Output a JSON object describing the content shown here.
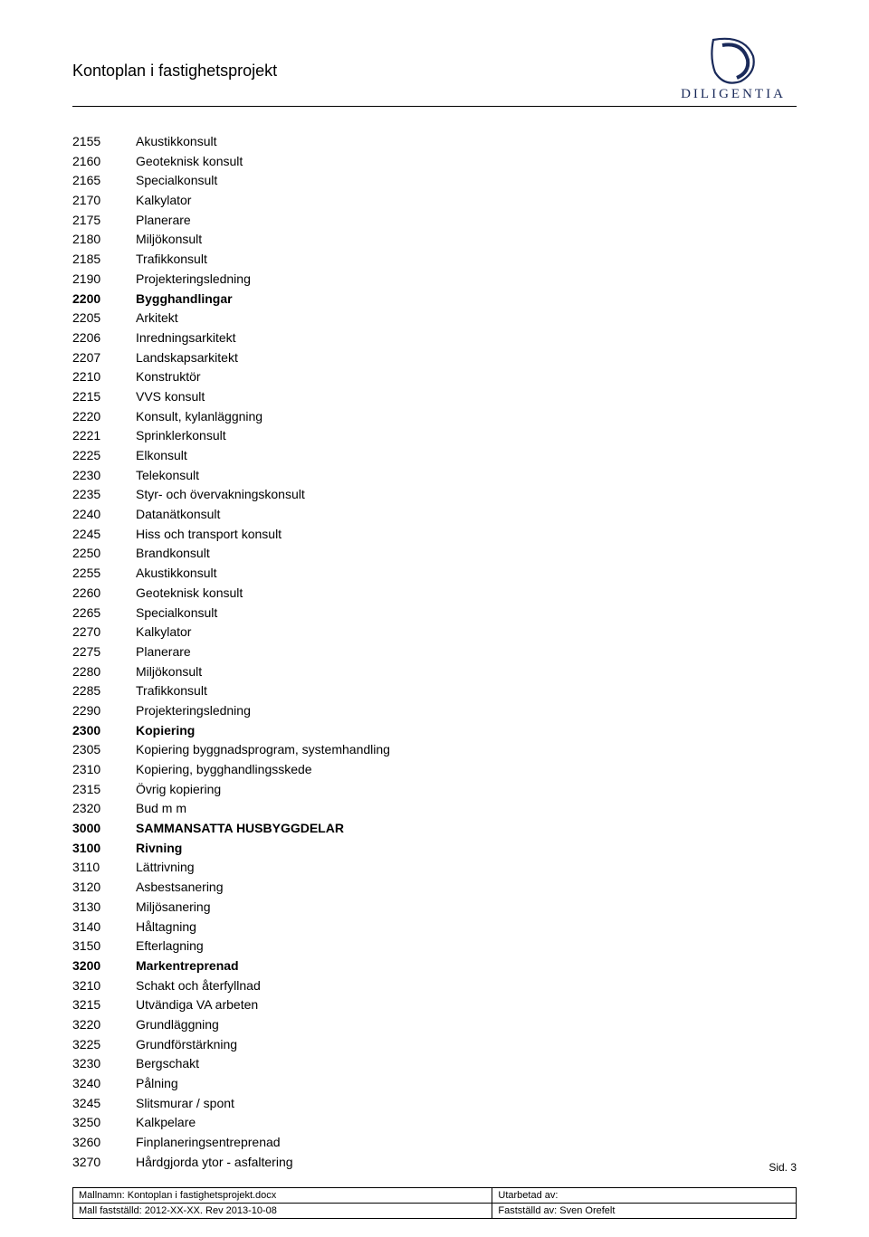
{
  "header": {
    "title": "Kontoplan i fastighetsprojekt",
    "logo_text": "DILIGENTIA",
    "logo_color": "#1a2a5a"
  },
  "rows": [
    {
      "code": "2155",
      "label": "Akustikkonsult",
      "bold": false
    },
    {
      "code": "2160",
      "label": "Geoteknisk konsult",
      "bold": false
    },
    {
      "code": "2165",
      "label": "Specialkonsult",
      "bold": false
    },
    {
      "code": "2170",
      "label": "Kalkylator",
      "bold": false
    },
    {
      "code": "2175",
      "label": "Planerare",
      "bold": false
    },
    {
      "code": "2180",
      "label": "Miljökonsult",
      "bold": false
    },
    {
      "code": "2185",
      "label": "Trafikkonsult",
      "bold": false
    },
    {
      "code": "2190",
      "label": "Projekteringsledning",
      "bold": false
    },
    {
      "code": "2200",
      "label": "Bygghandlingar",
      "bold": true
    },
    {
      "code": "2205",
      "label": "Arkitekt",
      "bold": false
    },
    {
      "code": "2206",
      "label": "Inredningsarkitekt",
      "bold": false
    },
    {
      "code": "2207",
      "label": "Landskapsarkitekt",
      "bold": false
    },
    {
      "code": "2210",
      "label": "Konstruktör",
      "bold": false
    },
    {
      "code": "2215",
      "label": "VVS konsult",
      "bold": false
    },
    {
      "code": "2220",
      "label": "Konsult, kylanläggning",
      "bold": false
    },
    {
      "code": "2221",
      "label": "Sprinklerkonsult",
      "bold": false
    },
    {
      "code": "2225",
      "label": "Elkonsult",
      "bold": false
    },
    {
      "code": "2230",
      "label": "Telekonsult",
      "bold": false
    },
    {
      "code": "2235",
      "label": "Styr- och övervakningskonsult",
      "bold": false
    },
    {
      "code": "2240",
      "label": "Datanätkonsult",
      "bold": false
    },
    {
      "code": "2245",
      "label": "Hiss och transport konsult",
      "bold": false
    },
    {
      "code": "2250",
      "label": "Brandkonsult",
      "bold": false
    },
    {
      "code": "2255",
      "label": "Akustikkonsult",
      "bold": false
    },
    {
      "code": "2260",
      "label": "Geoteknisk konsult",
      "bold": false
    },
    {
      "code": "2265",
      "label": "Specialkonsult",
      "bold": false
    },
    {
      "code": "2270",
      "label": "Kalkylator",
      "bold": false
    },
    {
      "code": "2275",
      "label": "Planerare",
      "bold": false
    },
    {
      "code": "2280",
      "label": "Miljökonsult",
      "bold": false
    },
    {
      "code": "2285",
      "label": "Trafikkonsult",
      "bold": false
    },
    {
      "code": "2290",
      "label": "Projekteringsledning",
      "bold": false
    },
    {
      "code": "2300",
      "label": "Kopiering",
      "bold": true
    },
    {
      "code": "2305",
      "label": "Kopiering byggnadsprogram, systemhandling",
      "bold": false
    },
    {
      "code": "2310",
      "label": "Kopiering, bygghandlingsskede",
      "bold": false
    },
    {
      "code": "2315",
      "label": "Övrig kopiering",
      "bold": false
    },
    {
      "code": "2320",
      "label": "Bud m m",
      "bold": false
    },
    {
      "code": "3000",
      "label": "SAMMANSATTA HUSBYGGDELAR",
      "bold": true
    },
    {
      "code": "3100",
      "label": "Rivning",
      "bold": true
    },
    {
      "code": "3110",
      "label": "Lättrivning",
      "bold": false
    },
    {
      "code": "3120",
      "label": "Asbestsanering",
      "bold": false
    },
    {
      "code": "3130",
      "label": "Miljösanering",
      "bold": false
    },
    {
      "code": "3140",
      "label": "Håltagning",
      "bold": false
    },
    {
      "code": "3150",
      "label": "Efterlagning",
      "bold": false
    },
    {
      "code": "3200",
      "label": "Markentreprenad",
      "bold": true
    },
    {
      "code": "3210",
      "label": "Schakt och återfyllnad",
      "bold": false
    },
    {
      "code": "3215",
      "label": "Utvändiga VA arbeten",
      "bold": false
    },
    {
      "code": "3220",
      "label": "Grundläggning",
      "bold": false
    },
    {
      "code": "3225",
      "label": "Grundförstärkning",
      "bold": false
    },
    {
      "code": "3230",
      "label": "Bergschakt",
      "bold": false
    },
    {
      "code": "3240",
      "label": "Pålning",
      "bold": false
    },
    {
      "code": "3245",
      "label": "Slitsmurar / spont",
      "bold": false
    },
    {
      "code": "3250",
      "label": "Kalkpelare",
      "bold": false
    },
    {
      "code": "3260",
      "label": "Finplaneringsentreprenad",
      "bold": false
    },
    {
      "code": "3270",
      "label": "Hårdgjorda ytor - asfaltering",
      "bold": false
    }
  ],
  "page_num": "Sid. 3",
  "footer": {
    "left1": "Mallnamn: Kontoplan i fastighetsprojekt.docx",
    "left2": "Mall fastställd: 2012-XX-XX. Rev 2013-10-08",
    "right1": "Utarbetad av:",
    "right2": "Fastställd av: Sven Orefelt"
  }
}
